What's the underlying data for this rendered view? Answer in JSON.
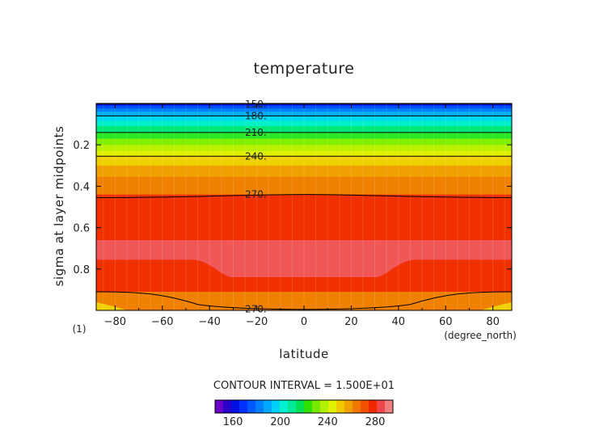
{
  "chart_data": {
    "type": "heatmap",
    "title": "temperature",
    "xlabel": "latitude",
    "ylabel": "sigma at layer midpoints",
    "x_units": "(degree_north)",
    "frame_label": "(1)",
    "xlim": [
      -88,
      88
    ],
    "ylim": [
      1.0,
      0.0
    ],
    "x_ticks": [
      -80,
      -60,
      -40,
      -20,
      0,
      20,
      40,
      60,
      80
    ],
    "y_ticks": [
      0.2,
      0.4,
      0.6,
      0.8
    ],
    "contour_interval_text": "CONTOUR INTERVAL = 1.500E+01",
    "contour_levels": [
      {
        "value": 150,
        "label": "150.",
        "sigma": [
          0.003,
          0.003
        ]
      },
      {
        "value": 180,
        "label": "180.",
        "sigma": [
          0.06,
          0.06
        ]
      },
      {
        "value": 210,
        "label": "210.",
        "sigma": [
          0.14,
          0.14
        ]
      },
      {
        "value": 240,
        "label": "240.",
        "sigma": [
          0.255,
          0.255
        ]
      },
      {
        "value": 270,
        "label": "270.",
        "sigma": [
          0.44,
          0.455
        ]
      },
      {
        "value": 270,
        "label": "270.",
        "sigma": [
          0.995,
          0.91
        ]
      }
    ],
    "bands": [
      {
        "sigma_bottom": 0.003,
        "color": "#1f00e0"
      },
      {
        "sigma_bottom": 0.012,
        "color": "#0020ff"
      },
      {
        "sigma_bottom": 0.025,
        "color": "#0050ff"
      },
      {
        "sigma_bottom": 0.04,
        "color": "#0080ff"
      },
      {
        "sigma_bottom": 0.06,
        "color": "#00b0ff"
      },
      {
        "sigma_bottom": 0.085,
        "color": "#00d8f0"
      },
      {
        "sigma_bottom": 0.11,
        "color": "#00f0c8"
      },
      {
        "sigma_bottom": 0.14,
        "color": "#00e878"
      },
      {
        "sigma_bottom": 0.17,
        "color": "#28e828"
      },
      {
        "sigma_bottom": 0.2,
        "color": "#80f000"
      },
      {
        "sigma_bottom": 0.23,
        "color": "#b8f000"
      },
      {
        "sigma_bottom": 0.255,
        "color": "#e0f000"
      },
      {
        "sigma_bottom": 0.3,
        "color": "#f0d000"
      },
      {
        "sigma_bottom": 0.355,
        "color": "#f0a000"
      },
      {
        "sigma_bottom": 0.44,
        "color": "#f08000"
      },
      {
        "sigma_bottom": 0.66,
        "color": "#f03000"
      },
      {
        "sigma_bottom": 0.755,
        "color": "#f04848"
      },
      {
        "sigma_bottom": 0.91,
        "color": "#f03000"
      },
      {
        "sigma_bottom": 0.995,
        "color": "#f08000"
      },
      {
        "sigma_bottom": 1.0,
        "color": "#f0a000"
      }
    ],
    "warm_core": {
      "color": "#f05858",
      "lat_range": [
        -30,
        30
      ],
      "sigma_range": [
        0.755,
        0.84
      ]
    },
    "surface_warm": {
      "color": "#f0d000",
      "lat_ranges": [
        [
          -88,
          -75
        ],
        [
          75,
          88
        ]
      ]
    },
    "colorbar": {
      "colors": [
        "#6a00c8",
        "#2800c8",
        "#0010e0",
        "#0030ff",
        "#0058ff",
        "#0080ff",
        "#00a8ff",
        "#00d0f8",
        "#00f0d0",
        "#00e898",
        "#00e050",
        "#30e000",
        "#78e800",
        "#b0f000",
        "#e0f000",
        "#f0c800",
        "#f0a000",
        "#f07800",
        "#f05000",
        "#f02800",
        "#f04848",
        "#f08080"
      ],
      "tick_labels": [
        "160",
        "200",
        "240",
        "280"
      ],
      "tick_values": [
        160,
        200,
        240,
        280
      ],
      "range": [
        145,
        295
      ]
    }
  }
}
